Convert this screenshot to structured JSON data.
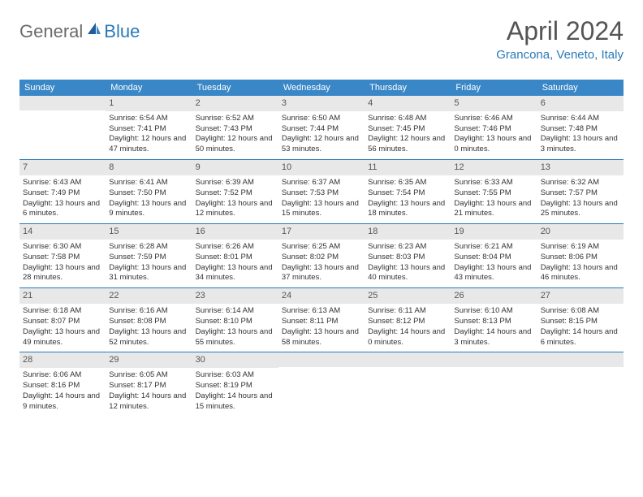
{
  "logo": {
    "part1": "General",
    "part2": "Blue"
  },
  "title": "April 2024",
  "location": "Grancona, Veneto, Italy",
  "colors": {
    "header_bg": "#3a87c7",
    "accent": "#2a7ab8",
    "daynum_bg": "#e8e8e8",
    "text": "#333333",
    "title_text": "#555555"
  },
  "days_of_week": [
    "Sunday",
    "Monday",
    "Tuesday",
    "Wednesday",
    "Thursday",
    "Friday",
    "Saturday"
  ],
  "weeks": [
    [
      {
        "n": "",
        "empty": true
      },
      {
        "n": "1",
        "sunrise": "Sunrise: 6:54 AM",
        "sunset": "Sunset: 7:41 PM",
        "daylight": "Daylight: 12 hours and 47 minutes."
      },
      {
        "n": "2",
        "sunrise": "Sunrise: 6:52 AM",
        "sunset": "Sunset: 7:43 PM",
        "daylight": "Daylight: 12 hours and 50 minutes."
      },
      {
        "n": "3",
        "sunrise": "Sunrise: 6:50 AM",
        "sunset": "Sunset: 7:44 PM",
        "daylight": "Daylight: 12 hours and 53 minutes."
      },
      {
        "n": "4",
        "sunrise": "Sunrise: 6:48 AM",
        "sunset": "Sunset: 7:45 PM",
        "daylight": "Daylight: 12 hours and 56 minutes."
      },
      {
        "n": "5",
        "sunrise": "Sunrise: 6:46 AM",
        "sunset": "Sunset: 7:46 PM",
        "daylight": "Daylight: 13 hours and 0 minutes."
      },
      {
        "n": "6",
        "sunrise": "Sunrise: 6:44 AM",
        "sunset": "Sunset: 7:48 PM",
        "daylight": "Daylight: 13 hours and 3 minutes."
      }
    ],
    [
      {
        "n": "7",
        "sunrise": "Sunrise: 6:43 AM",
        "sunset": "Sunset: 7:49 PM",
        "daylight": "Daylight: 13 hours and 6 minutes."
      },
      {
        "n": "8",
        "sunrise": "Sunrise: 6:41 AM",
        "sunset": "Sunset: 7:50 PM",
        "daylight": "Daylight: 13 hours and 9 minutes."
      },
      {
        "n": "9",
        "sunrise": "Sunrise: 6:39 AM",
        "sunset": "Sunset: 7:52 PM",
        "daylight": "Daylight: 13 hours and 12 minutes."
      },
      {
        "n": "10",
        "sunrise": "Sunrise: 6:37 AM",
        "sunset": "Sunset: 7:53 PM",
        "daylight": "Daylight: 13 hours and 15 minutes."
      },
      {
        "n": "11",
        "sunrise": "Sunrise: 6:35 AM",
        "sunset": "Sunset: 7:54 PM",
        "daylight": "Daylight: 13 hours and 18 minutes."
      },
      {
        "n": "12",
        "sunrise": "Sunrise: 6:33 AM",
        "sunset": "Sunset: 7:55 PM",
        "daylight": "Daylight: 13 hours and 21 minutes."
      },
      {
        "n": "13",
        "sunrise": "Sunrise: 6:32 AM",
        "sunset": "Sunset: 7:57 PM",
        "daylight": "Daylight: 13 hours and 25 minutes."
      }
    ],
    [
      {
        "n": "14",
        "sunrise": "Sunrise: 6:30 AM",
        "sunset": "Sunset: 7:58 PM",
        "daylight": "Daylight: 13 hours and 28 minutes."
      },
      {
        "n": "15",
        "sunrise": "Sunrise: 6:28 AM",
        "sunset": "Sunset: 7:59 PM",
        "daylight": "Daylight: 13 hours and 31 minutes."
      },
      {
        "n": "16",
        "sunrise": "Sunrise: 6:26 AM",
        "sunset": "Sunset: 8:01 PM",
        "daylight": "Daylight: 13 hours and 34 minutes."
      },
      {
        "n": "17",
        "sunrise": "Sunrise: 6:25 AM",
        "sunset": "Sunset: 8:02 PM",
        "daylight": "Daylight: 13 hours and 37 minutes."
      },
      {
        "n": "18",
        "sunrise": "Sunrise: 6:23 AM",
        "sunset": "Sunset: 8:03 PM",
        "daylight": "Daylight: 13 hours and 40 minutes."
      },
      {
        "n": "19",
        "sunrise": "Sunrise: 6:21 AM",
        "sunset": "Sunset: 8:04 PM",
        "daylight": "Daylight: 13 hours and 43 minutes."
      },
      {
        "n": "20",
        "sunrise": "Sunrise: 6:19 AM",
        "sunset": "Sunset: 8:06 PM",
        "daylight": "Daylight: 13 hours and 46 minutes."
      }
    ],
    [
      {
        "n": "21",
        "sunrise": "Sunrise: 6:18 AM",
        "sunset": "Sunset: 8:07 PM",
        "daylight": "Daylight: 13 hours and 49 minutes."
      },
      {
        "n": "22",
        "sunrise": "Sunrise: 6:16 AM",
        "sunset": "Sunset: 8:08 PM",
        "daylight": "Daylight: 13 hours and 52 minutes."
      },
      {
        "n": "23",
        "sunrise": "Sunrise: 6:14 AM",
        "sunset": "Sunset: 8:10 PM",
        "daylight": "Daylight: 13 hours and 55 minutes."
      },
      {
        "n": "24",
        "sunrise": "Sunrise: 6:13 AM",
        "sunset": "Sunset: 8:11 PM",
        "daylight": "Daylight: 13 hours and 58 minutes."
      },
      {
        "n": "25",
        "sunrise": "Sunrise: 6:11 AM",
        "sunset": "Sunset: 8:12 PM",
        "daylight": "Daylight: 14 hours and 0 minutes."
      },
      {
        "n": "26",
        "sunrise": "Sunrise: 6:10 AM",
        "sunset": "Sunset: 8:13 PM",
        "daylight": "Daylight: 14 hours and 3 minutes."
      },
      {
        "n": "27",
        "sunrise": "Sunrise: 6:08 AM",
        "sunset": "Sunset: 8:15 PM",
        "daylight": "Daylight: 14 hours and 6 minutes."
      }
    ],
    [
      {
        "n": "28",
        "sunrise": "Sunrise: 6:06 AM",
        "sunset": "Sunset: 8:16 PM",
        "daylight": "Daylight: 14 hours and 9 minutes."
      },
      {
        "n": "29",
        "sunrise": "Sunrise: 6:05 AM",
        "sunset": "Sunset: 8:17 PM",
        "daylight": "Daylight: 14 hours and 12 minutes."
      },
      {
        "n": "30",
        "sunrise": "Sunrise: 6:03 AM",
        "sunset": "Sunset: 8:19 PM",
        "daylight": "Daylight: 14 hours and 15 minutes."
      },
      {
        "n": "",
        "empty": true
      },
      {
        "n": "",
        "empty": true
      },
      {
        "n": "",
        "empty": true
      },
      {
        "n": "",
        "empty": true
      }
    ]
  ]
}
